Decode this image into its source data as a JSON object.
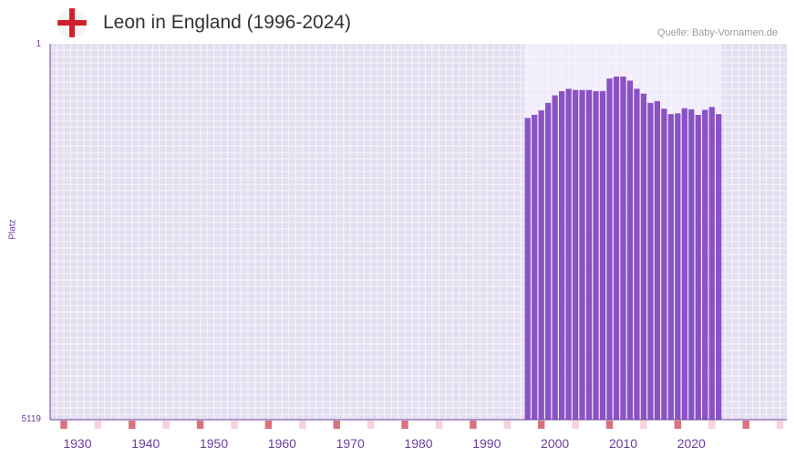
{
  "header": {
    "flag_icon": "england-flag-icon",
    "title": "Leon in England (1996-2024)",
    "source": "Quelle: Baby-Vornamen.de"
  },
  "colors": {
    "bar": "#8a52c4",
    "plot_bg": "#e4dff0",
    "highlight_bg": "#f1ecfb",
    "grid": "#f7f5fc",
    "axis": "#6a3fa0",
    "marker_decade": "#d9727f",
    "marker_five": "#f6d3d9",
    "flag_cross": "#d0202e"
  },
  "chart_data": {
    "type": "bar",
    "title": "Leon in England (1996-2024)",
    "xlabel": "",
    "ylabel": "Platz",
    "y_inverted": true,
    "ylim": [
      1,
      5119
    ],
    "ytick_labels": [
      "1",
      "5119"
    ],
    "xlim": [
      1926,
      2034
    ],
    "xtick_values": [
      1930,
      1940,
      1950,
      1960,
      1970,
      1980,
      1990,
      2000,
      2010,
      2020
    ],
    "xtick_labels": [
      "1930",
      "1940",
      "1950",
      "1960",
      "1970",
      "1980",
      "1990",
      "2000",
      "2010",
      "2020"
    ],
    "highlight_range": [
      1996,
      2024
    ],
    "years": [
      1996,
      1997,
      1998,
      1999,
      2000,
      2001,
      2002,
      2003,
      2004,
      2005,
      2006,
      2007,
      2008,
      2009,
      2010,
      2011,
      2012,
      2013,
      2014,
      2015,
      2016,
      2017,
      2018,
      2019,
      2020,
      2021,
      2022,
      2023,
      2024
    ],
    "values": [
      1011,
      968,
      907,
      806,
      703,
      647,
      614,
      630,
      630,
      630,
      645,
      645,
      474,
      447,
      447,
      503,
      613,
      680,
      806,
      781,
      885,
      959,
      948,
      878,
      893,
      969,
      900,
      862,
      959
    ]
  }
}
